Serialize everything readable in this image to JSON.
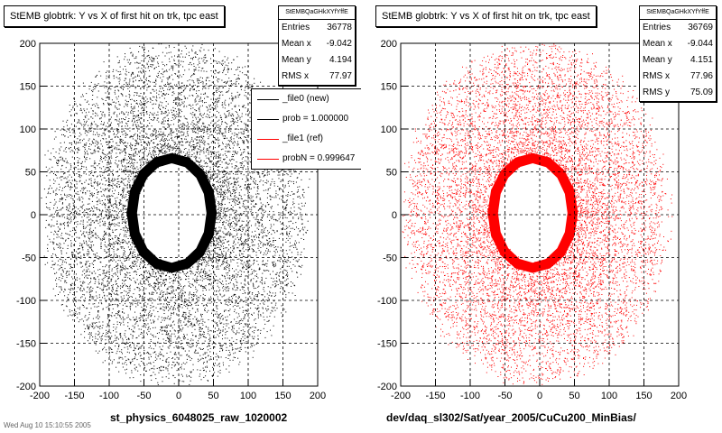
{
  "pads": [
    {
      "title": "StEMB globtrk: Y vs X of first hit on trk, tpc east",
      "stats": {
        "header": "StEMBQaGHkXYfYffE",
        "rows": [
          {
            "label": "Entries",
            "value": "36778"
          },
          {
            "label": "Mean x",
            "value": "-9.042"
          },
          {
            "label": "Mean y",
            "value": "4.194"
          },
          {
            "label": "RMS x",
            "value": "77.97"
          }
        ]
      },
      "legend": [
        {
          "label": "_file0 (new)",
          "color": "#000000"
        },
        {
          "label": "prob = 1.000000",
          "color": "#000000"
        },
        {
          "label": "_file1 (ref)",
          "color": "#ff0000"
        },
        {
          "label": "probN = 0.999647",
          "color": "#ff0000"
        }
      ],
      "file_label": "st_physics_6048025_raw_1020002",
      "marker_color": "#000000"
    },
    {
      "title": "StEMB globtrk: Y vs X of first hit on trk, tpc east",
      "stats": {
        "header": "StEMBQaGHkXYfYffE",
        "rows": [
          {
            "label": "Entries",
            "value": "36769"
          },
          {
            "label": "Mean x",
            "value": "-9.044"
          },
          {
            "label": "Mean y",
            "value": "4.151"
          },
          {
            "label": "RMS x",
            "value": "77.96"
          },
          {
            "label": "RMS y",
            "value": "75.09"
          }
        ]
      },
      "file_label": "dev/daq_sl302/Sat/year_2005/CuCu200_MinBias/",
      "marker_color": "#ff0000"
    }
  ],
  "cut_text": "Wed Aug 10 15:10:55 2005",
  "chart_data": [
    {
      "type": "scatter",
      "title": "StEMB globtrk: Y vs X of first hit on trk, tpc east",
      "xlim": [
        -200,
        200
      ],
      "ylim": [
        -200,
        200
      ],
      "xticks": [
        -200,
        -150,
        -100,
        -50,
        0,
        50,
        100,
        150,
        200
      ],
      "yticks": [
        -200,
        -150,
        -100,
        -50,
        0,
        50,
        100,
        150,
        200
      ],
      "grid": true,
      "entries": 36778,
      "mean_x": -9.042,
      "mean_y": 4.194,
      "rms_x": 77.97,
      "series": [
        {
          "name": "_file0 (new)",
          "color": "#000000",
          "shape": {
            "inner_hole_radius": 50,
            "dense_ring_outer": 65,
            "outer_radius": 185
          }
        }
      ],
      "legend_position": "top-right"
    },
    {
      "type": "scatter",
      "title": "StEMB globtrk: Y vs X of first hit on trk, tpc east",
      "xlim": [
        -200,
        200
      ],
      "ylim": [
        -200,
        200
      ],
      "xticks": [
        -200,
        -150,
        -100,
        -50,
        0,
        50,
        100,
        150,
        200
      ],
      "yticks": [
        -200,
        -150,
        -100,
        -50,
        0,
        50,
        100,
        150,
        200
      ],
      "grid": true,
      "entries": 36769,
      "mean_x": -9.044,
      "mean_y": 4.151,
      "rms_x": 77.96,
      "rms_y": 75.09,
      "series": [
        {
          "name": "_file1 (ref)",
          "color": "#ff0000",
          "shape": {
            "inner_hole_radius": 50,
            "dense_ring_outer": 65,
            "outer_radius": 185
          }
        }
      ]
    }
  ]
}
